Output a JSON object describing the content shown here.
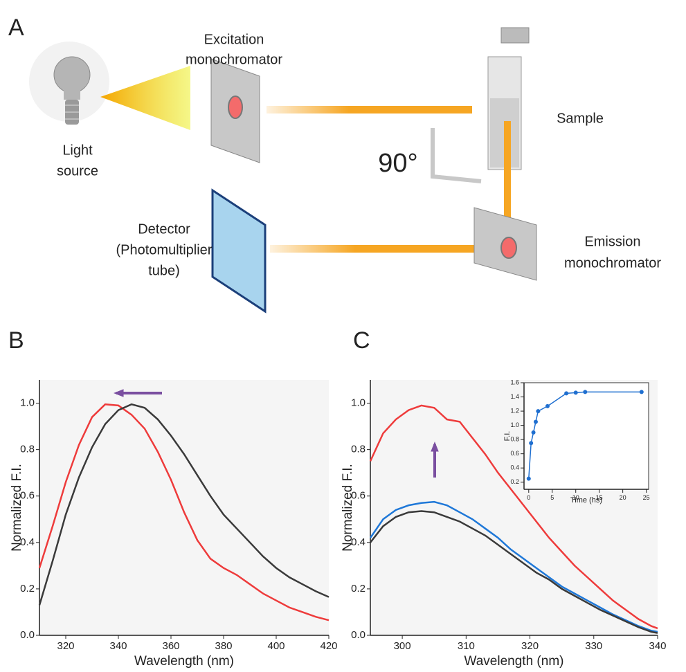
{
  "panels": {
    "a": "A",
    "b": "B",
    "c": "C"
  },
  "diagram": {
    "light_source": [
      "Light",
      "source"
    ],
    "excitation": [
      "Excitation",
      "monochromator"
    ],
    "sample": "Sample",
    "angle": "90°",
    "detector": [
      "Detector",
      "(Photomultiplier",
      "tube)"
    ],
    "emission": [
      "Emission",
      "monochromator"
    ]
  },
  "chart_data": [
    {
      "type": "line",
      "x_label": "Wavelength (nm)",
      "y_label": "Normalized F.I.",
      "xlim": [
        310,
        420
      ],
      "xticks": [
        320,
        340,
        360,
        380,
        400,
        420
      ],
      "ylim": [
        0,
        1.1
      ],
      "yticks": [
        {
          "value": 0,
          "label": "0.0"
        },
        0.2,
        0.4,
        0.6,
        0.8,
        {
          "value": 1,
          "label": "1.0"
        }
      ],
      "x": [
        310,
        315,
        320,
        325,
        330,
        335,
        340,
        345,
        350,
        355,
        360,
        365,
        370,
        375,
        380,
        385,
        390,
        395,
        400,
        405,
        410,
        415,
        420
      ],
      "series": [
        {
          "color": "#ee3b3b",
          "values": [
            0.29,
            0.47,
            0.66,
            0.82,
            0.94,
            0.995,
            0.99,
            0.95,
            0.89,
            0.79,
            0.67,
            0.53,
            0.41,
            0.33,
            0.29,
            0.26,
            0.22,
            0.18,
            0.15,
            0.12,
            0.1,
            0.08,
            0.065
          ]
        },
        {
          "color": "#3a3a3a",
          "values": [
            0.13,
            0.32,
            0.52,
            0.68,
            0.81,
            0.91,
            0.97,
            0.995,
            0.98,
            0.93,
            0.86,
            0.78,
            0.69,
            0.6,
            0.52,
            0.46,
            0.4,
            0.34,
            0.29,
            0.25,
            0.22,
            0.19,
            0.165
          ]
        }
      ]
    },
    {
      "type": "line",
      "x_label": "Wavelength (nm)",
      "y_label": "Normalized F.I.",
      "xlim": [
        295,
        340
      ],
      "xticks": [
        300,
        310,
        320,
        330,
        340
      ],
      "ylim": [
        0,
        1.1
      ],
      "yticks": [
        {
          "value": 0,
          "label": "0.0"
        },
        0.2,
        0.4,
        0.6,
        0.8,
        {
          "value": 1,
          "label": "1.0"
        }
      ],
      "x": [
        295,
        297,
        299,
        301,
        303,
        305,
        307,
        309,
        311,
        313,
        315,
        317,
        319,
        321,
        323,
        325,
        327,
        329,
        331,
        333,
        335,
        337,
        339,
        340
      ],
      "series": [
        {
          "color": "#ee3b3b",
          "values": [
            0.75,
            0.87,
            0.93,
            0.97,
            0.99,
            0.98,
            0.93,
            0.92,
            0.85,
            0.78,
            0.7,
            0.63,
            0.56,
            0.49,
            0.42,
            0.36,
            0.3,
            0.25,
            0.2,
            0.15,
            0.11,
            0.07,
            0.04,
            0.03
          ]
        },
        {
          "color": "#1f78d8",
          "values": [
            0.42,
            0.5,
            0.54,
            0.56,
            0.57,
            0.575,
            0.56,
            0.53,
            0.5,
            0.46,
            0.42,
            0.37,
            0.33,
            0.29,
            0.25,
            0.21,
            0.18,
            0.15,
            0.12,
            0.09,
            0.065,
            0.04,
            0.02,
            0.015
          ]
        },
        {
          "color": "#3a3a3a",
          "values": [
            0.4,
            0.47,
            0.51,
            0.53,
            0.535,
            0.53,
            0.51,
            0.49,
            0.46,
            0.43,
            0.39,
            0.35,
            0.31,
            0.27,
            0.24,
            0.2,
            0.17,
            0.14,
            0.11,
            0.085,
            0.06,
            0.035,
            0.015,
            0.01
          ]
        }
      ]
    },
    {
      "type": "line",
      "markers": true,
      "x_label": "Time (hs)",
      "y_label": "F.I.",
      "xlim": [
        -1,
        25.5
      ],
      "xticks": [
        0,
        5,
        10,
        15,
        20,
        25
      ],
      "ylim": [
        0.1,
        1.6
      ],
      "yticks": [
        0.2,
        0.4,
        0.6,
        0.8,
        {
          "value": 1,
          "label": "1.0"
        },
        1.2,
        1.4,
        1.6
      ],
      "x": [
        0,
        0.5,
        1,
        1.5,
        2,
        4,
        8,
        10,
        12,
        24
      ],
      "series": [
        {
          "color": "#1f6fd0",
          "values": [
            0.25,
            0.75,
            0.9,
            1.05,
            1.2,
            1.27,
            1.45,
            1.46,
            1.47,
            1.47
          ]
        }
      ]
    }
  ]
}
